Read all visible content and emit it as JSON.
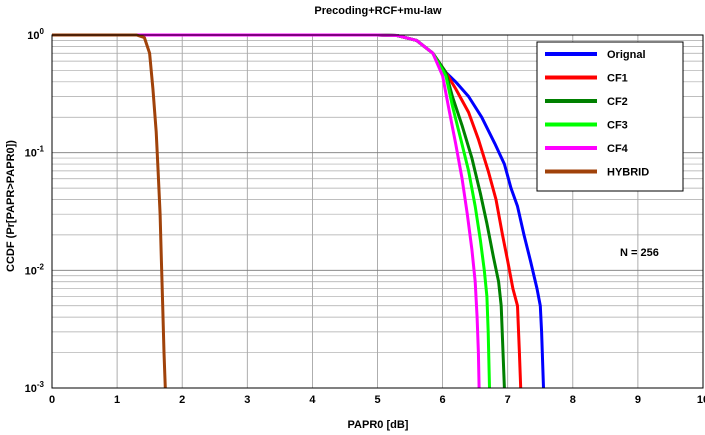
{
  "chart_data": {
    "type": "line",
    "title": "Precoding+RCF+mu-law",
    "xlabel": "PAPR0 [dB]",
    "ylabel": "CCDF (Pr[PAPR>PAPR0])",
    "xlim": [
      0,
      10
    ],
    "ylim": [
      0.001,
      1
    ],
    "yscale": "log",
    "grid": "on",
    "legend_position": "top-right",
    "xticks": [
      "0",
      "1",
      "2",
      "3",
      "4",
      "5",
      "6",
      "7",
      "8",
      "9",
      "10"
    ],
    "yticks": [
      {
        "base": "10",
        "exp": "-3",
        "value": 0.001
      },
      {
        "base": "10",
        "exp": "-2",
        "value": 0.01
      },
      {
        "base": "10",
        "exp": "-1",
        "value": 0.1
      },
      {
        "base": "10",
        "exp": "0",
        "value": 1
      }
    ],
    "annotation": "N = 256",
    "series": [
      {
        "name": "Orignal",
        "color": "#0000ff",
        "points": [
          [
            0,
            1
          ],
          [
            5.0,
            1
          ],
          [
            5.3,
            0.99
          ],
          [
            5.6,
            0.9
          ],
          [
            5.85,
            0.7
          ],
          [
            6.05,
            0.48
          ],
          [
            6.2,
            0.4
          ],
          [
            6.4,
            0.3
          ],
          [
            6.6,
            0.2
          ],
          [
            6.8,
            0.12
          ],
          [
            6.95,
            0.08
          ],
          [
            7.05,
            0.05
          ],
          [
            7.15,
            0.035
          ],
          [
            7.25,
            0.02
          ],
          [
            7.35,
            0.012
          ],
          [
            7.45,
            0.007
          ],
          [
            7.5,
            0.005
          ],
          [
            7.52,
            0.003
          ],
          [
            7.55,
            0.001
          ]
        ]
      },
      {
        "name": "CF1",
        "color": "#ff0000",
        "points": [
          [
            0,
            1
          ],
          [
            5.0,
            1
          ],
          [
            5.3,
            0.99
          ],
          [
            5.6,
            0.9
          ],
          [
            5.85,
            0.7
          ],
          [
            6.05,
            0.48
          ],
          [
            6.2,
            0.35
          ],
          [
            6.4,
            0.22
          ],
          [
            6.55,
            0.13
          ],
          [
            6.7,
            0.07
          ],
          [
            6.82,
            0.04
          ],
          [
            6.92,
            0.02
          ],
          [
            7.0,
            0.012
          ],
          [
            7.08,
            0.007
          ],
          [
            7.15,
            0.005
          ],
          [
            7.18,
            0.002
          ],
          [
            7.2,
            0.001
          ]
        ]
      },
      {
        "name": "CF2",
        "color": "#008000",
        "points": [
          [
            0,
            1
          ],
          [
            5.0,
            1
          ],
          [
            5.3,
            0.99
          ],
          [
            5.6,
            0.9
          ],
          [
            5.85,
            0.7
          ],
          [
            6.05,
            0.48
          ],
          [
            6.15,
            0.3
          ],
          [
            6.3,
            0.17
          ],
          [
            6.45,
            0.09
          ],
          [
            6.58,
            0.045
          ],
          [
            6.68,
            0.025
          ],
          [
            6.78,
            0.013
          ],
          [
            6.86,
            0.008
          ],
          [
            6.9,
            0.005
          ],
          [
            6.95,
            0.001
          ]
        ]
      },
      {
        "name": "CF3",
        "color": "#00ff00",
        "points": [
          [
            0,
            1
          ],
          [
            5.0,
            1
          ],
          [
            5.3,
            0.99
          ],
          [
            5.6,
            0.9
          ],
          [
            5.85,
            0.7
          ],
          [
            6.05,
            0.45
          ],
          [
            6.15,
            0.25
          ],
          [
            6.28,
            0.13
          ],
          [
            6.4,
            0.07
          ],
          [
            6.5,
            0.035
          ],
          [
            6.58,
            0.018
          ],
          [
            6.64,
            0.01
          ],
          [
            6.68,
            0.006
          ],
          [
            6.7,
            0.003
          ],
          [
            6.72,
            0.001
          ]
        ]
      },
      {
        "name": "CF4",
        "color": "#ff00ff",
        "points": [
          [
            0,
            1
          ],
          [
            5.0,
            1
          ],
          [
            5.3,
            0.99
          ],
          [
            5.6,
            0.9
          ],
          [
            5.85,
            0.7
          ],
          [
            6.0,
            0.45
          ],
          [
            6.1,
            0.23
          ],
          [
            6.2,
            0.12
          ],
          [
            6.3,
            0.06
          ],
          [
            6.38,
            0.03
          ],
          [
            6.45,
            0.015
          ],
          [
            6.5,
            0.008
          ],
          [
            6.53,
            0.004
          ],
          [
            6.55,
            0.002
          ],
          [
            6.56,
            0.001
          ]
        ]
      },
      {
        "name": "HYBRID",
        "color": "#a0420a",
        "points": [
          [
            0,
            1
          ],
          [
            1.3,
            1
          ],
          [
            1.42,
            0.95
          ],
          [
            1.5,
            0.7
          ],
          [
            1.55,
            0.35
          ],
          [
            1.6,
            0.15
          ],
          [
            1.63,
            0.07
          ],
          [
            1.66,
            0.03
          ],
          [
            1.68,
            0.012
          ],
          [
            1.7,
            0.005
          ],
          [
            1.72,
            0.002
          ],
          [
            1.74,
            0.001
          ]
        ]
      }
    ]
  }
}
